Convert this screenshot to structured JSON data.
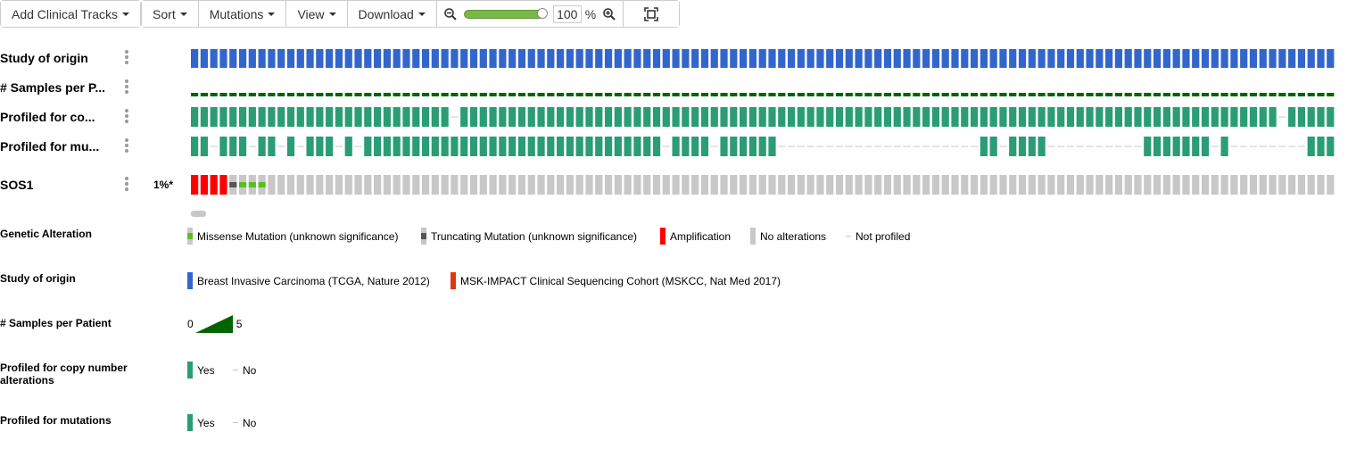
{
  "toolbar": {
    "add_clinical_tracks": "Add Clinical Tracks",
    "sort": "Sort",
    "mutations": "Mutations",
    "view": "View",
    "download": "Download",
    "zoom_value": "100",
    "zoom_unit": "%",
    "zoom_level_fraction": 1.0
  },
  "tracks": {
    "study_of_origin": "Study of origin",
    "samples_per_patient": "# Samples per P...",
    "profiled_cna": "Profiled for co...",
    "profiled_mut": "Profiled for mu...",
    "gene": "SOS1",
    "gene_pct": "1%*"
  },
  "oncoprint": {
    "num_samples": 119,
    "amplification_count": 4,
    "truncating_count": 1,
    "missense_count": 3,
    "cna_not_profiled_indices": [
      27,
      113
    ],
    "mut_profiled_ranges": [
      [
        0,
        1
      ],
      [
        3,
        5
      ],
      [
        7,
        8
      ],
      [
        10,
        10
      ],
      [
        12,
        14
      ],
      [
        16,
        16
      ],
      [
        18,
        48
      ],
      [
        50,
        53
      ],
      [
        55,
        60
      ],
      [
        82,
        83
      ],
      [
        85,
        88
      ],
      [
        99,
        105
      ],
      [
        107,
        107
      ],
      [
        116,
        118
      ]
    ]
  },
  "legends": {
    "genetic_alteration": {
      "title": "Genetic Alteration",
      "items": [
        "Missense Mutation (unknown significance)",
        "Truncating Mutation (unknown significance)",
        "Amplification",
        "No alterations",
        "Not profiled"
      ]
    },
    "study_of_origin": {
      "title": "Study of origin",
      "items": [
        "Breast Invasive Carcinoma (TCGA, Nature 2012)",
        "MSK-IMPACT Clinical Sequencing Cohort (MSKCC, Nat Med 2017)"
      ]
    },
    "samples_per_patient": {
      "title": "# Samples per Patient",
      "min": "0",
      "max": "5"
    },
    "profiled_cna": {
      "title": "Profiled for copy number alterations",
      "yes": "Yes",
      "no": "No"
    },
    "profiled_mut": {
      "title": "Profiled for mutations",
      "yes": "Yes",
      "no": "No"
    }
  },
  "colors": {
    "study_blue": "#3366cc",
    "study_red": "#dc3912",
    "samples_green": "#006400",
    "profiled_teal": "#2a9d74",
    "amplification": "#ff0000",
    "missense": "#5bbf1f",
    "truncating": "#555555",
    "no_alteration": "#c8c8c8",
    "not_profiled": "#c8c8c8"
  }
}
